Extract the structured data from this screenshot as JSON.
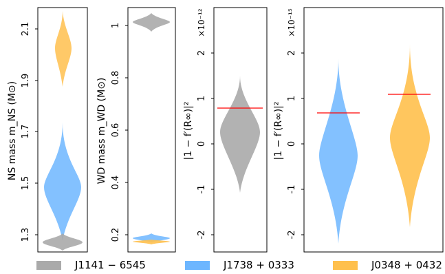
{
  "chart_data": [
    {
      "type": "violin",
      "ylabel": "NS mass m_NS (M⊙)",
      "ylim": [
        1.24,
        2.18
      ],
      "yticks": [
        "1.3",
        "1.5",
        "1.7",
        "1.9",
        "2.1"
      ],
      "series": [
        {
          "name": "J1141 − 6545",
          "center": 1.275,
          "min": 1.25,
          "max": 1.295
        },
        {
          "name": "J1738 + 0333",
          "center": 1.47,
          "min": 1.32,
          "max": 1.73
        },
        {
          "name": "J0348 + 0432",
          "center": 2.01,
          "min": 1.89,
          "max": 2.16
        }
      ]
    },
    {
      "type": "violin",
      "ylabel": "WD mass m_WD (M⊙)",
      "ylim": [
        0.16,
        1.07
      ],
      "yticks": [
        "0.2",
        "0.4",
        "0.6",
        "0.8",
        "1"
      ],
      "series": [
        {
          "name": "J1141 − 6545",
          "center": 1.015,
          "min": 0.99,
          "max": 1.045
        },
        {
          "name": "J1738 + 0333",
          "center": 0.182,
          "min": 0.172,
          "max": 0.2
        },
        {
          "name": "J0348 + 0432",
          "center": 0.172,
          "min": 0.165,
          "max": 0.18
        }
      ]
    },
    {
      "type": "violin",
      "ylabel": "|1 − f′(R∞)|²",
      "exponent": "×10⁻¹²",
      "ylim": [
        -2.4,
        3.0
      ],
      "yticks": [
        "-2",
        "-1",
        "0",
        "1",
        "2"
      ],
      "series": [
        {
          "name": "J1141 − 6545",
          "center": 0.2,
          "min": -1.05,
          "max": 1.5,
          "limit": 0.78
        }
      ]
    },
    {
      "type": "violin",
      "ylabel": "|1 − f′(R∞)|²",
      "exponent": "×10⁻¹⁵",
      "ylim": [
        -2.4,
        3.0
      ],
      "yticks": [
        "-2",
        "-1",
        "0",
        "1",
        "2"
      ],
      "series": [
        {
          "name": "J1738 + 0333",
          "center": -0.25,
          "min": -2.2,
          "max": 1.9,
          "limit": 0.68
        },
        {
          "name": "J0348 + 0432",
          "center": 0.15,
          "min": -1.85,
          "max": 2.15,
          "limit": 1.1
        }
      ]
    }
  ],
  "legend": [
    {
      "label": "J1141 − 6545",
      "color": "#aaaaaa"
    },
    {
      "label": "J1738 + 0333",
      "color": "#6db6ff"
    },
    {
      "label": "J0348 + 0432",
      "color": "#ffc04d"
    }
  ],
  "colors": {
    "limit_line": "#ff0000"
  }
}
